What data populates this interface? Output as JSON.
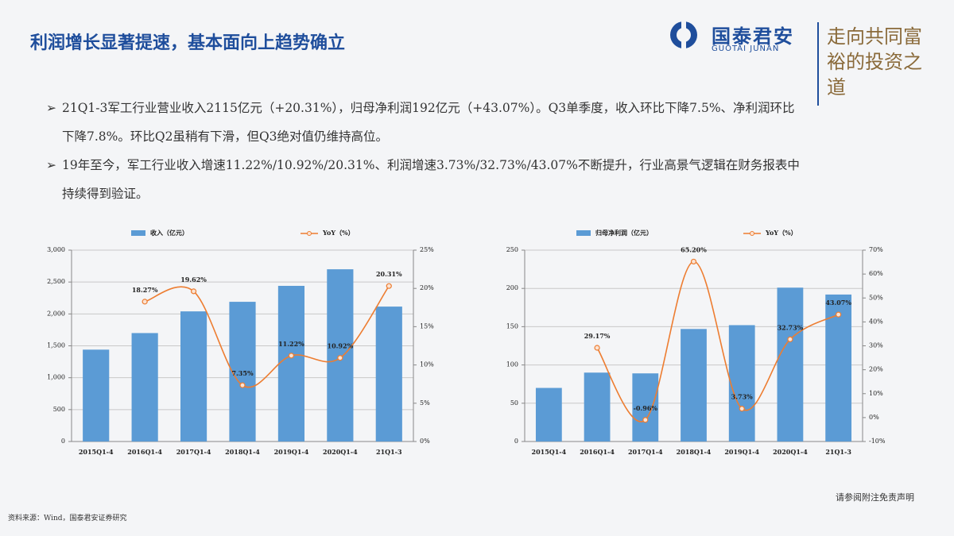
{
  "title": "利润增长显著提速，基本面向上趋势确立",
  "logo": {
    "name": "国泰君安",
    "name_en": "GUOTAI JUNAN",
    "slogan": "走向共同富裕的投资之道"
  },
  "bullets": [
    "21Q1-3军工行业营业收入2115亿元（+20.31%），归母净利润192亿元（+43.07%）。Q3单季度，收入环比下降7.5%、净利润环比下降7.8%。环比Q2虽稍有下滑，但Q3绝对值仍维持高位。",
    "19年至今，军工行业收入增速11.22%/10.92%/20.31%、利润增速3.73%/32.73%/43.07%不断提升，行业高景气逻辑在财务报表中持续得到验证。"
  ],
  "chart_data": [
    {
      "type": "combo",
      "categories": [
        "2015Q1-4",
        "2016Q1-4",
        "2017Q1-4",
        "2018Q1-4",
        "2019Q1-4",
        "2020Q1-4",
        "21Q1-3"
      ],
      "series": [
        {
          "name": "收入（亿元）",
          "type": "bar",
          "color": "#5b9bd5",
          "values": [
            1440,
            1700,
            2040,
            2190,
            2440,
            2700,
            2115
          ]
        },
        {
          "name": "YoY（%）",
          "type": "line",
          "axis": "y2",
          "color": "#ed7d31",
          "values": [
            null,
            18.27,
            19.62,
            7.35,
            11.22,
            10.92,
            20.31
          ],
          "value_labels": [
            null,
            "18.27%",
            "19.62%",
            "7.35%",
            "11.22%",
            "10.92%",
            "20.31%"
          ]
        }
      ],
      "ylim": [
        0,
        3000
      ],
      "yticks": [
        0,
        500,
        {
          "value": 1000,
          "label": "1,000"
        },
        {
          "value": 1500,
          "label": "1,500"
        },
        {
          "value": 2000,
          "label": "2,000"
        },
        {
          "value": 2500,
          "label": "2,500"
        },
        {
          "value": 3000,
          "label": "3,000"
        }
      ],
      "y2lim": [
        0,
        25
      ],
      "y2ticks": [
        {
          "value": 0,
          "label": "0%"
        },
        {
          "value": 5,
          "label": "5%"
        },
        {
          "value": 10,
          "label": "10%"
        },
        {
          "value": 15,
          "label": "15%"
        },
        {
          "value": 20,
          "label": "20%"
        },
        {
          "value": 25,
          "label": "25%"
        }
      ],
      "grid": true
    },
    {
      "type": "combo",
      "categories": [
        "2015Q1-4",
        "2016Q1-4",
        "2017Q1-4",
        "2018Q1-4",
        "2019Q1-4",
        "2020Q1-4",
        "21Q1-3"
      ],
      "series": [
        {
          "name": "归母净利润（亿元）",
          "type": "bar",
          "color": "#5b9bd5",
          "values": [
            70,
            90,
            89,
            147,
            152,
            201,
            192
          ]
        },
        {
          "name": "YoY（%）",
          "type": "line",
          "axis": "y2",
          "color": "#ed7d31",
          "values": [
            null,
            29.17,
            -0.96,
            65.2,
            3.73,
            32.73,
            43.07
          ],
          "value_labels": [
            null,
            "29.17%",
            "-0.96%",
            "65.20%",
            "3.73%",
            "32.73%",
            "43.07%"
          ]
        }
      ],
      "ylim": [
        0,
        250
      ],
      "yticks": [
        0,
        50,
        100,
        150,
        200,
        250
      ],
      "y2lim": [
        -10,
        70
      ],
      "y2ticks": [
        {
          "value": -10,
          "label": "-10%"
        },
        {
          "value": 0,
          "label": "0%"
        },
        {
          "value": 10,
          "label": "10%"
        },
        {
          "value": 20,
          "label": "20%"
        },
        {
          "value": 30,
          "label": "30%"
        },
        {
          "value": 40,
          "label": "40%"
        },
        {
          "value": 50,
          "label": "50%"
        },
        {
          "value": 60,
          "label": "60%"
        },
        {
          "value": 70,
          "label": "70%"
        }
      ],
      "grid": true
    }
  ],
  "disclaimer": "请参阅附注免责声明",
  "source": "资料来源：Wind，国泰君安证券研究"
}
